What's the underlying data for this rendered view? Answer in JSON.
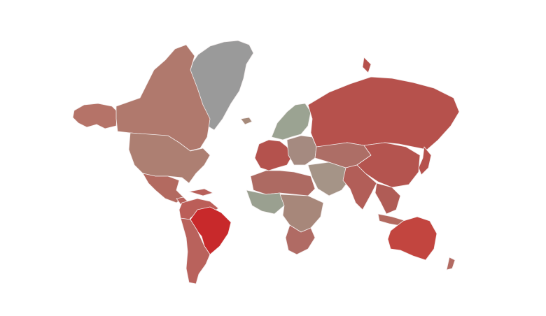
{
  "map": {
    "type": "choropleth-world",
    "colors": {
      "greenland": "#9a9a9a",
      "alaska": "#b57368",
      "canada": "#b0796d",
      "usa": "#ad7f72",
      "mexico": "#b36a60",
      "central_america": "#b8605a",
      "brazil": "#c8292b",
      "south_america_north": "#bb5e58",
      "south_america_south": "#b9625c",
      "europe_west": "#b4524d",
      "scandinavia": "#9ba392",
      "europe_east": "#a58a80",
      "russia": "#b6514c",
      "north_africa": "#ad6a62",
      "west_africa": "#9aa090",
      "central_africa": "#a7877a",
      "south_africa": "#b06b64",
      "middle_east": "#a59487",
      "central_asia": "#ad6e66",
      "china": "#b4544f",
      "india": "#b25e58",
      "southeast_asia": "#b05c56",
      "japan": "#b6514c",
      "indonesia": "#b36a60",
      "australia": "#c2453f",
      "new_zealand": "#b26a62",
      "iceland": "#a68a7a"
    }
  }
}
